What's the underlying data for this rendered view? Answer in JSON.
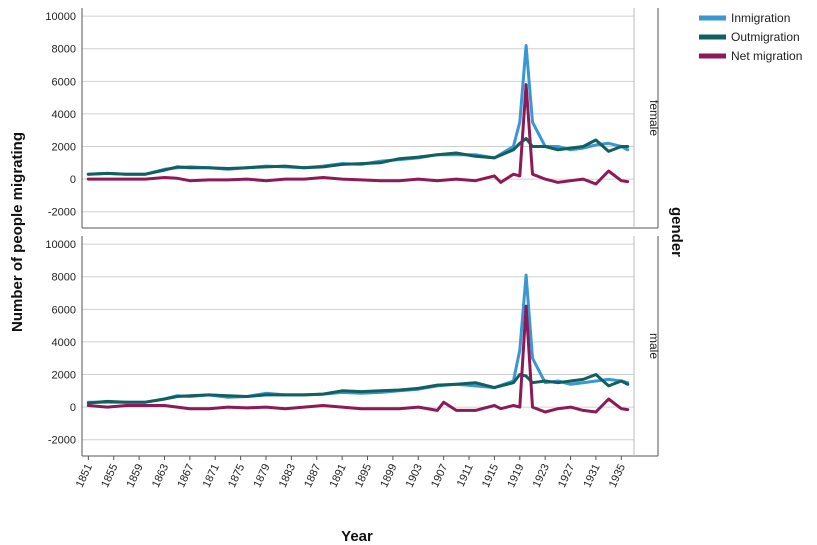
{
  "chart_data": {
    "type": "line",
    "xlabel": "Year",
    "ylabel": "Number of people migrating",
    "facet_label": "gender",
    "x_tick_labels": [
      "1851",
      "1855",
      "1859",
      "1863",
      "1867",
      "1871",
      "1875",
      "1879",
      "1883",
      "1887",
      "1891",
      "1895",
      "1899",
      "1903",
      "1907",
      "1911",
      "1915",
      "1919",
      "1923",
      "1927",
      "1931",
      "1935"
    ],
    "xlim": [
      1850,
      1937
    ],
    "ylim": [
      -3000,
      10500
    ],
    "y_ticks": [
      -2000,
      0,
      2000,
      4000,
      6000,
      8000,
      10000
    ],
    "y_tick_labels": [
      "-2000",
      "0",
      "2000",
      "4000",
      "6000",
      "8000",
      "10000"
    ],
    "legend": {
      "position": "top-right",
      "entries": [
        "Inmigration",
        "Outmigration",
        "Net migration"
      ]
    },
    "colors": {
      "Inmigration": "#3a97d4",
      "Outmigration": "#115f5f",
      "Net migration": "#8c1a57"
    },
    "panels": [
      {
        "label": "female",
        "series": [
          {
            "name": "Inmigration",
            "x": [
              1851,
              1854,
              1857,
              1860,
              1863,
              1865,
              1867,
              1870,
              1873,
              1876,
              1879,
              1882,
              1885,
              1888,
              1891,
              1894,
              1897,
              1900,
              1903,
              1906,
              1909,
              1912,
              1915,
              1918,
              1919,
              1920,
              1921,
              1923,
              1925,
              1927,
              1929,
              1931,
              1933,
              1935,
              1936
            ],
            "y": [
              300,
              350,
              300,
              300,
              600,
              700,
              750,
              700,
              600,
              700,
              800,
              750,
              700,
              800,
              950,
              900,
              1100,
              1200,
              1300,
              1500,
              1500,
              1500,
              1300,
              2000,
              3500,
              8200,
              3500,
              2000,
              2000,
              1800,
              1900,
              2100,
              2200,
              2000,
              1800
            ]
          },
          {
            "name": "Outmigration",
            "x": [
              1851,
              1854,
              1857,
              1860,
              1863,
              1865,
              1867,
              1870,
              1873,
              1876,
              1879,
              1882,
              1885,
              1888,
              1891,
              1894,
              1897,
              1900,
              1903,
              1906,
              1909,
              1912,
              1915,
              1918,
              1919,
              1920,
              1921,
              1923,
              1925,
              1927,
              1929,
              1931,
              1933,
              1935,
              1936
            ],
            "y": [
              300,
              350,
              300,
              300,
              550,
              750,
              700,
              700,
              650,
              700,
              750,
              800,
              700,
              750,
              900,
              950,
              1000,
              1250,
              1350,
              1500,
              1600,
              1400,
              1300,
              1800,
              2200,
              2500,
              2000,
              2000,
              1800,
              1900,
              2000,
              2400,
              1700,
              2000,
              2000
            ]
          },
          {
            "name": "Net migration",
            "x": [
              1851,
              1854,
              1857,
              1860,
              1863,
              1865,
              1867,
              1870,
              1873,
              1876,
              1879,
              1882,
              1885,
              1888,
              1891,
              1894,
              1897,
              1900,
              1903,
              1906,
              1909,
              1912,
              1915,
              1916,
              1918,
              1919,
              1920,
              1921,
              1923,
              1925,
              1927,
              1929,
              1931,
              1933,
              1935,
              1936
            ],
            "y": [
              0,
              0,
              0,
              0,
              100,
              50,
              -100,
              -50,
              -50,
              0,
              -100,
              0,
              0,
              100,
              0,
              -50,
              -100,
              -100,
              0,
              -100,
              0,
              -100,
              200,
              -200,
              300,
              200,
              5800,
              300,
              0,
              -200,
              -100,
              0,
              -300,
              500,
              -100,
              -150
            ]
          }
        ]
      },
      {
        "label": "male",
        "series": [
          {
            "name": "Inmigration",
            "x": [
              1851,
              1854,
              1857,
              1860,
              1863,
              1865,
              1867,
              1870,
              1873,
              1876,
              1879,
              1882,
              1885,
              1888,
              1891,
              1894,
              1897,
              1900,
              1903,
              1906,
              1909,
              1912,
              1915,
              1918,
              1919,
              1920,
              1921,
              1923,
              1925,
              1927,
              1929,
              1931,
              1933,
              1935,
              1936
            ],
            "y": [
              300,
              300,
              300,
              300,
              500,
              700,
              650,
              750,
              600,
              650,
              850,
              750,
              750,
              800,
              900,
              850,
              900,
              1000,
              1100,
              1300,
              1400,
              1300,
              1200,
              1600,
              3500,
              8100,
              3000,
              1500,
              1600,
              1400,
              1500,
              1600,
              1700,
              1600,
              1500
            ]
          },
          {
            "name": "Outmigration",
            "x": [
              1851,
              1854,
              1857,
              1860,
              1863,
              1865,
              1867,
              1870,
              1873,
              1876,
              1879,
              1882,
              1885,
              1888,
              1891,
              1894,
              1897,
              1900,
              1903,
              1906,
              1909,
              1912,
              1915,
              1918,
              1919,
              1920,
              1921,
              1923,
              1925,
              1927,
              1929,
              1931,
              1933,
              1935,
              1936
            ],
            "y": [
              250,
              350,
              300,
              300,
              500,
              650,
              700,
              750,
              700,
              650,
              750,
              750,
              750,
              800,
              1000,
              950,
              1000,
              1050,
              1150,
              1350,
              1400,
              1500,
              1200,
              1500,
              2000,
              1900,
              1500,
              1600,
              1500,
              1600,
              1700,
              2000,
              1300,
              1600,
              1400
            ]
          },
          {
            "name": "Net migration",
            "x": [
              1851,
              1854,
              1857,
              1860,
              1863,
              1865,
              1867,
              1870,
              1873,
              1876,
              1879,
              1882,
              1885,
              1888,
              1891,
              1894,
              1897,
              1900,
              1903,
              1906,
              1907,
              1909,
              1912,
              1915,
              1916,
              1918,
              1919,
              1920,
              1921,
              1923,
              1925,
              1927,
              1929,
              1931,
              1933,
              1935,
              1936
            ],
            "y": [
              100,
              0,
              100,
              100,
              100,
              0,
              -100,
              -100,
              0,
              -50,
              0,
              -100,
              0,
              100,
              0,
              -100,
              -100,
              -100,
              0,
              -200,
              300,
              -200,
              -200,
              100,
              -100,
              100,
              0,
              6200,
              0,
              -300,
              -100,
              0,
              -200,
              -300,
              500,
              -100,
              -150
            ]
          }
        ]
      }
    ]
  }
}
